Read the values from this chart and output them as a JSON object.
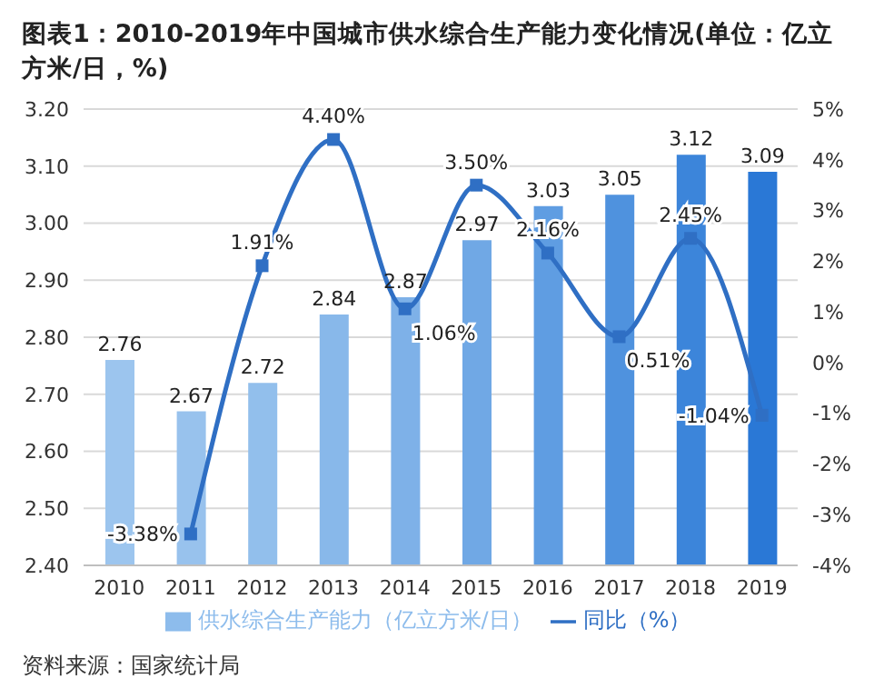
{
  "chart_data": {
    "type": "bar",
    "title": "图表1：2010-2019年中国城市供水综合生产能力变化情况(单位：亿立方米/日，%)",
    "categories": [
      "2010",
      "2011",
      "2012",
      "2013",
      "2014",
      "2015",
      "2016",
      "2017",
      "2018",
      "2019"
    ],
    "series": [
      {
        "name": "供水综合生产能力（亿立方米/日）",
        "color": "#8dbcec",
        "colors": [
          "#9cc5ee",
          "#98c2ed",
          "#92bfec",
          "#88b8ea",
          "#7eb1e8",
          "#70a8e5",
          "#5f9de2",
          "#4f92de",
          "#3c85da",
          "#2a78d6"
        ],
        "values": [
          2.76,
          2.67,
          2.72,
          2.84,
          2.87,
          2.97,
          3.03,
          3.05,
          3.12,
          3.09
        ],
        "value_labels": [
          "2.76",
          "2.67",
          "2.72",
          "2.84",
          "2.87",
          "2.97",
          "3.03",
          "3.05",
          "3.12",
          "3.09"
        ]
      },
      {
        "name": "同比（%）",
        "type": "line",
        "axis": "y2",
        "color": "#2f6fc4",
        "marker": "square",
        "values": [
          null,
          -3.38,
          1.91,
          4.4,
          1.06,
          3.5,
          2.16,
          0.51,
          2.45,
          -1.04
        ],
        "value_labels": [
          null,
          "-3.38%",
          "1.91%",
          "4.40%",
          "1.06%",
          "3.50%",
          "2.16%",
          "0.51%",
          "2.45%",
          "-1.04%"
        ]
      }
    ],
    "ylim": [
      2.4,
      3.2
    ],
    "yticks": [
      {
        "value": 2.4,
        "label": "2.40"
      },
      {
        "value": 2.5,
        "label": "2.50"
      },
      {
        "value": 2.6,
        "label": "2.60"
      },
      {
        "value": 2.7,
        "label": "2.70"
      },
      {
        "value": 2.8,
        "label": "2.80"
      },
      {
        "value": 2.9,
        "label": "2.90"
      },
      {
        "value": 3.0,
        "label": "3.00"
      },
      {
        "value": 3.1,
        "label": "3.10"
      },
      {
        "value": 3.2,
        "label": "3.20"
      }
    ],
    "y2lim": [
      -4,
      5
    ],
    "y2ticks": [
      {
        "value": -4,
        "label": "-4%"
      },
      {
        "value": -3,
        "label": "-3%"
      },
      {
        "value": -2,
        "label": "-2%"
      },
      {
        "value": -1,
        "label": "-1%"
      },
      {
        "value": 0,
        "label": "0%"
      },
      {
        "value": 1,
        "label": "1%"
      },
      {
        "value": 2,
        "label": "2%"
      },
      {
        "value": 3,
        "label": "3%"
      },
      {
        "value": 4,
        "label": "4%"
      },
      {
        "value": 5,
        "label": "5%"
      }
    ],
    "grid": "y",
    "legend": "bottom",
    "annotations": [
      "资料来源：国家统计局"
    ]
  }
}
